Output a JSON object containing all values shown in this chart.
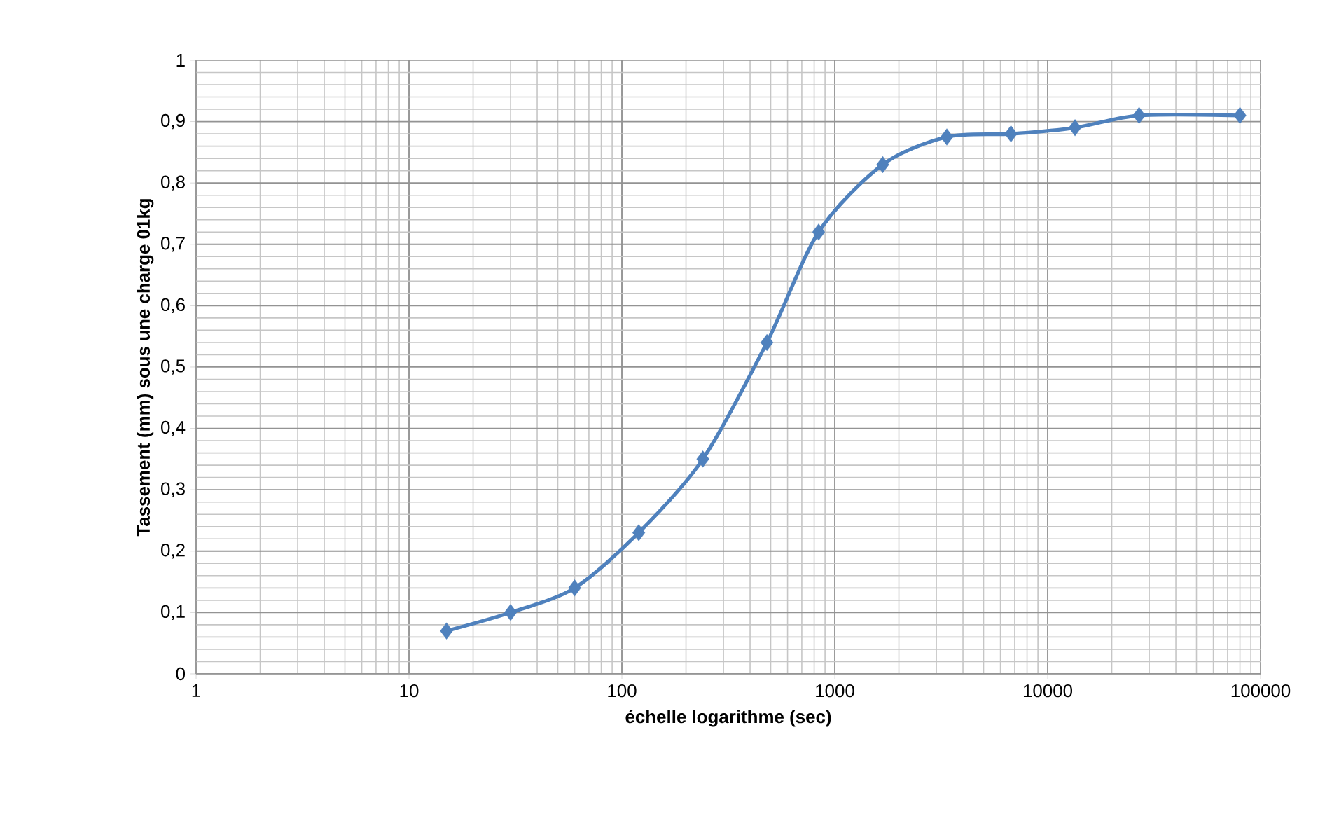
{
  "chart_data": {
    "type": "line",
    "xlabel": "échelle  logarithme (sec)",
    "ylabel": "Tassement (mm) sous une charge 01kg",
    "log": "x",
    "grid": true,
    "marker": "diamond",
    "line_style": "solid",
    "x": [
      15,
      30,
      60,
      120,
      240,
      480,
      840,
      1680,
      3360,
      6720,
      13440,
      26880,
      80000
    ],
    "series": [
      {
        "color": "#4f81bd",
        "values": [
          0.07,
          0.1,
          0.14,
          0.23,
          0.35,
          0.54,
          0.72,
          0.83,
          0.875,
          0.88,
          0.89,
          0.91,
          0.91
        ]
      }
    ],
    "xlim": [
      1,
      100000
    ],
    "xticks": [
      1,
      10,
      100,
      1000,
      10000,
      100000
    ],
    "ylim": [
      0,
      1
    ],
    "yticks": [
      0,
      {
        "value": 0.1,
        "label": "0,1"
      },
      {
        "value": 0.2,
        "label": "0,2"
      },
      {
        "value": 0.3,
        "label": "0,3"
      },
      {
        "value": 0.4,
        "label": "0,4"
      },
      {
        "value": 0.5,
        "label": "0,5"
      },
      {
        "value": 0.6,
        "label": "0,6"
      },
      {
        "value": 0.7,
        "label": "0,7"
      },
      {
        "value": 0.8,
        "label": "0,8"
      },
      {
        "value": 0.9,
        "label": "0,9"
      },
      1
    ]
  }
}
